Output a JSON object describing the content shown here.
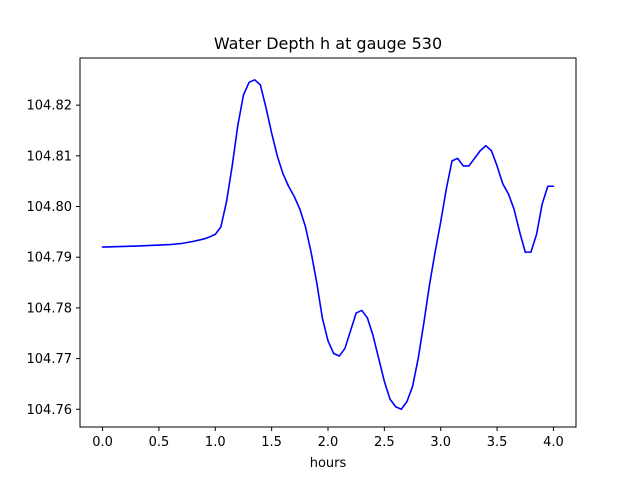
{
  "chart_data": {
    "type": "line",
    "title": "Water Depth h at gauge 530",
    "xlabel": "hours",
    "ylabel": "",
    "xlim": [
      -0.2,
      4.2
    ],
    "ylim": [
      104.7565,
      104.8293
    ],
    "grid": false,
    "xticks": [
      0.0,
      0.5,
      1.0,
      1.5,
      2.0,
      2.5,
      3.0,
      3.5,
      4.0
    ],
    "xtick_labels": [
      "0.0",
      "0.5",
      "1.0",
      "1.5",
      "2.0",
      "2.5",
      "3.0",
      "3.5",
      "4.0"
    ],
    "yticks": [
      104.76,
      104.77,
      104.78,
      104.79,
      104.8,
      104.81,
      104.82
    ],
    "ytick_labels": [
      "104.76",
      "104.77",
      "104.78",
      "104.79",
      "104.80",
      "104.81",
      "104.82"
    ],
    "series": [
      {
        "color": "#0000ff",
        "x": [
          0.0,
          0.3,
          0.6,
          0.7,
          0.8,
          0.9,
          0.95,
          1.0,
          1.05,
          1.1,
          1.15,
          1.2,
          1.25,
          1.3,
          1.35,
          1.4,
          1.45,
          1.5,
          1.55,
          1.6,
          1.65,
          1.7,
          1.75,
          1.8,
          1.85,
          1.9,
          1.95,
          2.0,
          2.05,
          2.1,
          2.15,
          2.2,
          2.25,
          2.3,
          2.35,
          2.4,
          2.45,
          2.5,
          2.55,
          2.6,
          2.65,
          2.7,
          2.75,
          2.8,
          2.85,
          2.9,
          2.95,
          3.0,
          3.05,
          3.1,
          3.15,
          3.2,
          3.25,
          3.3,
          3.35,
          3.4,
          3.45,
          3.5,
          3.55,
          3.6,
          3.65,
          3.7,
          3.75,
          3.8,
          3.85,
          3.9,
          3.95,
          4.0
        ],
        "y": [
          104.792,
          104.7922,
          104.7925,
          104.7927,
          104.7931,
          104.7936,
          104.794,
          104.7945,
          104.796,
          104.801,
          104.808,
          104.816,
          104.822,
          104.8245,
          104.825,
          104.824,
          104.8195,
          104.8145,
          104.81,
          104.8065,
          104.804,
          104.802,
          104.7995,
          104.796,
          104.791,
          104.785,
          104.778,
          104.7735,
          104.771,
          104.7705,
          104.772,
          104.7755,
          104.779,
          104.7795,
          104.778,
          104.7745,
          104.77,
          104.7655,
          104.762,
          104.7605,
          104.76,
          104.7615,
          104.7645,
          104.77,
          104.777,
          104.7845,
          104.791,
          104.797,
          104.8035,
          104.809,
          104.8095,
          104.808,
          104.808,
          104.8095,
          104.811,
          104.812,
          104.811,
          104.808,
          104.8045,
          104.8025,
          104.7995,
          104.795,
          104.791,
          104.791,
          104.7945,
          104.8005,
          104.804,
          104.804
        ]
      }
    ]
  }
}
